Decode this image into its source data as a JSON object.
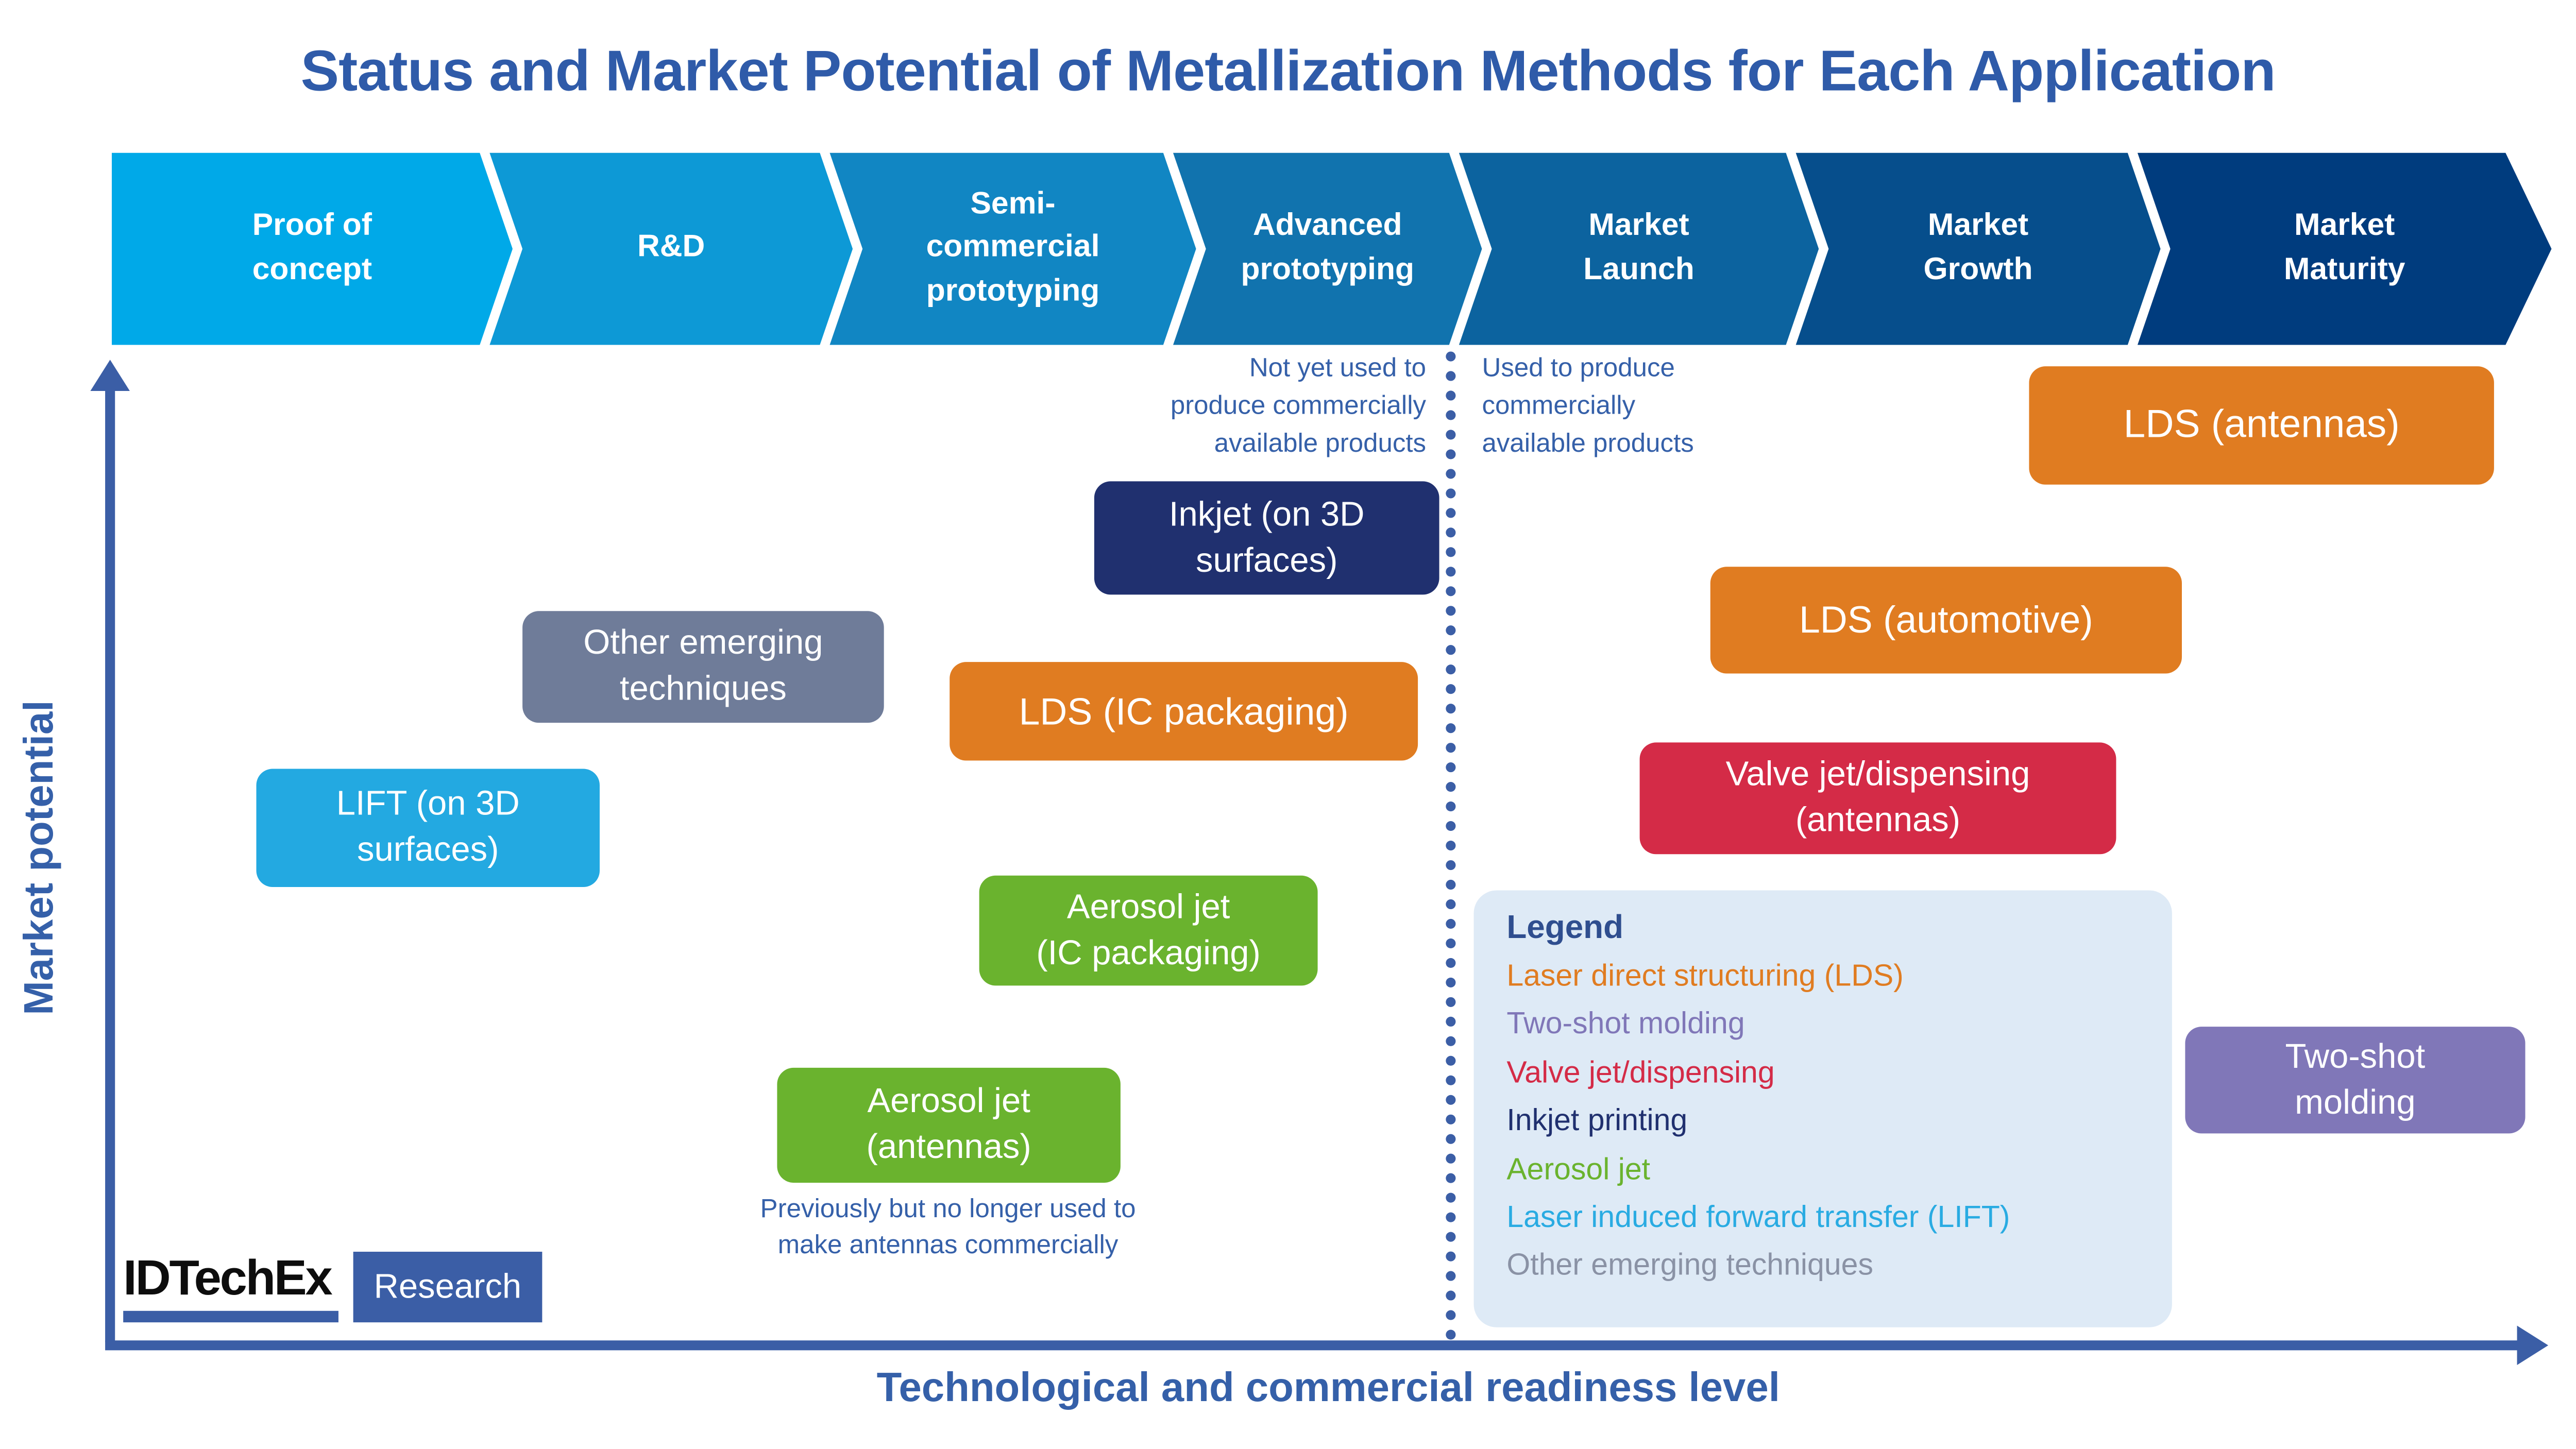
{
  "title": "Status and Market Potential of Metallization Methods for Each Application",
  "pipeline": {
    "stages": [
      {
        "label": "Proof of\nconcept",
        "color": "#00A9E8"
      },
      {
        "label": "R&D",
        "color": "#0D99D6"
      },
      {
        "label": "Semi-\ncommercial\nprototyping",
        "color": "#1186C3"
      },
      {
        "label": "Advanced\nprototyping",
        "color": "#1173AE"
      },
      {
        "label": "Market\nLaunch",
        "color": "#0C639F"
      },
      {
        "label": "Market\nGrowth",
        "color": "#064E8C"
      },
      {
        "label": "Market\nMaturity",
        "color": "#003C7E"
      }
    ]
  },
  "divider_notes": {
    "left": "Not yet used to\nproduce commercially\navailable products",
    "right": "Used to produce\ncommercially\navailable products"
  },
  "methods": [
    {
      "label": "LDS (antennas)",
      "color": "#E07C21"
    },
    {
      "label": "Inkjet (on 3D\nsurfaces)",
      "color": "#20306F"
    },
    {
      "label": "Other emerging\ntechniques",
      "color": "#6F7C99"
    },
    {
      "label": "LDS (IC packaging)",
      "color": "#E07C21"
    },
    {
      "label": "LDS (automotive)",
      "color": "#E07C21"
    },
    {
      "label": "Valve jet/dispensing\n(antennas)",
      "color": "#D42B47"
    },
    {
      "label": "LIFT (on 3D\nsurfaces)",
      "color": "#23A9E1"
    },
    {
      "label": "Aerosol jet\n(IC packaging)",
      "color": "#6AB32E"
    },
    {
      "label": "Aerosol jet\n(antennas)",
      "color": "#6AB32E"
    },
    {
      "label": "Two-shot\nmolding",
      "color": "#8077B8"
    }
  ],
  "footnote": "Previously but no longer used to\nmake antennas commercially",
  "legend": {
    "title": "Legend",
    "items": [
      {
        "label": "Laser direct structuring (LDS)",
        "color": "#E07C21"
      },
      {
        "label": "Two-shot molding",
        "color": "#8077B8"
      },
      {
        "label": "Valve jet/dispensing",
        "color": "#D42B47"
      },
      {
        "label": "Inkjet printing",
        "color": "#20306F"
      },
      {
        "label": "Aerosol jet",
        "color": "#6AB32E"
      },
      {
        "label": "Laser induced forward transfer (LIFT)",
        "color": "#29ABE2"
      },
      {
        "label": "Other emerging techniques",
        "color": "#8A92A5"
      }
    ]
  },
  "axes": {
    "y_label": "Market potential",
    "x_label": "Technological and commercial readiness level",
    "color": "#3B5EA6"
  },
  "logo": {
    "brand": "IDTechEx",
    "suffix": "Research"
  }
}
